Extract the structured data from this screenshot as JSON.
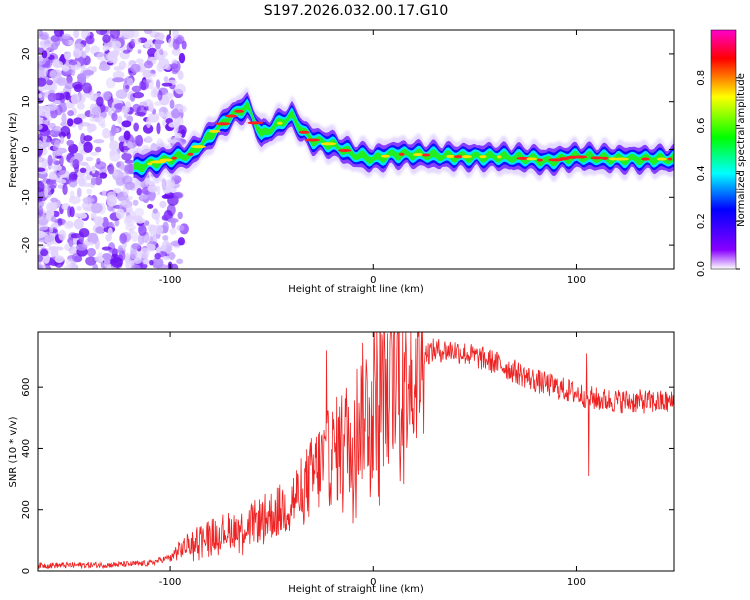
{
  "title": "S197.2026.032.00.17.G10",
  "chart_data": [
    {
      "type": "heatmap",
      "xlabel": "Height of straight line (km)",
      "ylabel": "Frequency (Hz)",
      "xlim": [
        -165,
        148
      ],
      "ylim": [
        -25,
        25
      ],
      "x_ticks": [
        -100,
        0,
        100
      ],
      "y_ticks": [
        -20,
        -10,
        0,
        10,
        20
      ],
      "colorbar": {
        "label": "Normalized spectral amplitude",
        "range": [
          0,
          1
        ],
        "ticks": [
          0.0,
          0.2,
          0.4,
          0.6,
          0.8
        ],
        "colors": [
          "#ffffff",
          "#8800ff",
          "#0000ff",
          "#00ffff",
          "#00ff00",
          "#ffff00",
          "#ff0000",
          "#ff00cc"
        ]
      },
      "ridge": {
        "x": [
          -118,
          -110,
          -100,
          -90,
          -80,
          -70,
          -62,
          -55,
          -48,
          -40,
          -35,
          -30,
          -20,
          -10,
          0,
          10,
          20,
          40,
          60,
          80,
          85,
          100,
          120,
          148
        ],
        "y": [
          -4,
          -3,
          -2,
          -1,
          3,
          7,
          9,
          3,
          5,
          7,
          4,
          2,
          1,
          -1,
          -2,
          -1,
          -1,
          -1.5,
          -1.5,
          -2,
          -2.5,
          -1.5,
          -2,
          -2
        ]
      }
    },
    {
      "type": "line",
      "xlabel": "Height of straight line (km)",
      "ylabel": "SNR (10 * v/v)",
      "xlim": [
        -165,
        148
      ],
      "ylim": [
        0,
        780
      ],
      "x_ticks": [
        -100,
        0,
        100
      ],
      "y_ticks": [
        0,
        200,
        400,
        600
      ],
      "series_color": "#ee2222",
      "profile": {
        "x": [
          -165,
          -130,
          -110,
          -100,
          -95,
          -85,
          -75,
          -65,
          -55,
          -45,
          -35,
          -28,
          -20,
          -10,
          -5,
          5,
          10,
          15,
          20,
          30,
          40,
          60,
          80,
          100,
          110,
          120,
          148
        ],
        "y": [
          18,
          20,
          25,
          45,
          70,
          110,
          130,
          140,
          170,
          200,
          260,
          330,
          380,
          460,
          520,
          600,
          650,
          680,
          700,
          720,
          720,
          680,
          620,
          580,
          560,
          555,
          550
        ]
      },
      "spikes": [
        {
          "x": -23,
          "y": 720
        },
        {
          "x": 7,
          "y": 775
        },
        {
          "x": 10,
          "y": 770
        },
        {
          "x": 105,
          "y": 710
        },
        {
          "x": 106,
          "y": 310
        }
      ]
    }
  ]
}
